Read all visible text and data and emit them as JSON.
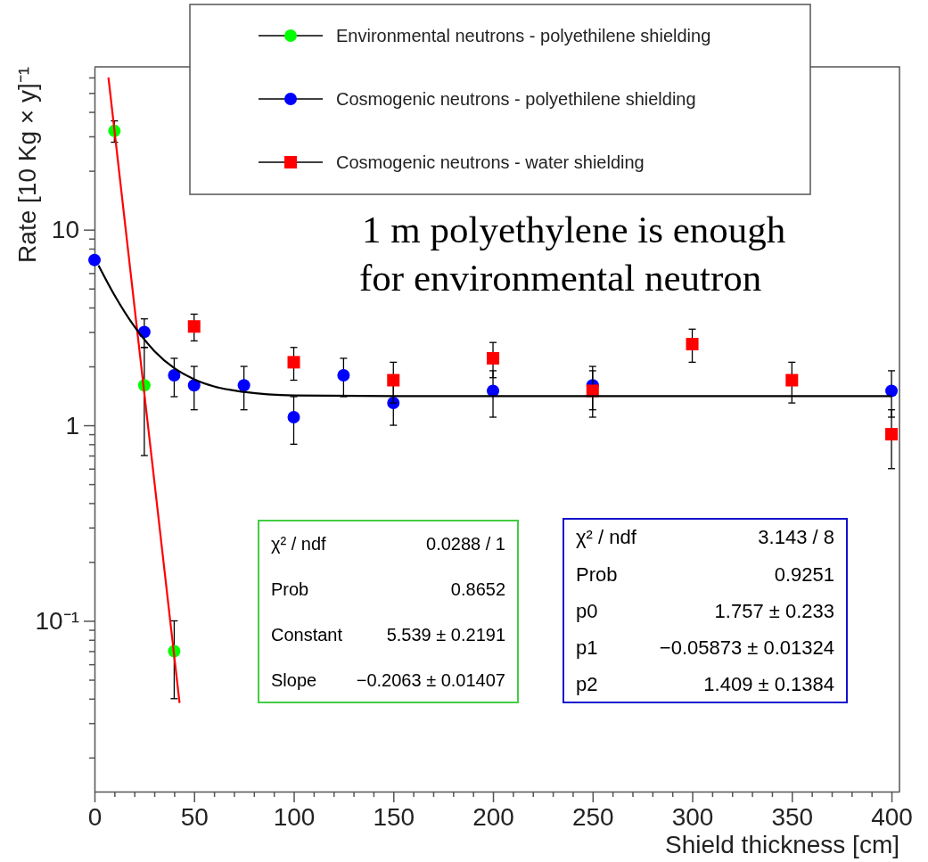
{
  "chart_data": {
    "type": "scatter",
    "xlabel": "Shield thickness [cm]",
    "ylabel": "Rate [10 Kg  × y]⁻¹",
    "log": "y",
    "grid": false,
    "legend": "top",
    "xlim": [
      0,
      404
    ],
    "ylim": [
      0.0134,
      68
    ],
    "xticks": [
      0,
      {
        "value": 10,
        "label": null
      },
      {
        "value": 20,
        "label": null
      },
      {
        "value": 30,
        "label": null
      },
      {
        "value": 40,
        "label": null
      },
      50,
      {
        "value": 60,
        "label": null
      },
      {
        "value": 70,
        "label": null
      },
      {
        "value": 80,
        "label": null
      },
      {
        "value": 90,
        "label": null
      },
      100,
      {
        "value": 110,
        "label": null
      },
      {
        "value": 120,
        "label": null
      },
      {
        "value": 130,
        "label": null
      },
      {
        "value": 140,
        "label": null
      },
      150,
      {
        "value": 160,
        "label": null
      },
      {
        "value": 170,
        "label": null
      },
      {
        "value": 180,
        "label": null
      },
      {
        "value": 190,
        "label": null
      },
      200,
      {
        "value": 210,
        "label": null
      },
      {
        "value": 220,
        "label": null
      },
      {
        "value": 230,
        "label": null
      },
      {
        "value": 240,
        "label": null
      },
      250,
      {
        "value": 260,
        "label": null
      },
      {
        "value": 270,
        "label": null
      },
      {
        "value": 280,
        "label": null
      },
      {
        "value": 290,
        "label": null
      },
      300,
      {
        "value": 310,
        "label": null
      },
      {
        "value": 320,
        "label": null
      },
      {
        "value": 330,
        "label": null
      },
      {
        "value": 340,
        "label": null
      },
      350,
      {
        "value": 360,
        "label": null
      },
      {
        "value": 370,
        "label": null
      },
      {
        "value": 380,
        "label": null
      },
      {
        "value": 390,
        "label": null
      },
      400
    ],
    "yticks": [
      {
        "value": 0.02,
        "label": null
      },
      {
        "value": 0.03,
        "label": null
      },
      {
        "value": 0.04,
        "label": null
      },
      {
        "value": 0.05,
        "label": null
      },
      {
        "value": 0.06,
        "label": null
      },
      {
        "value": 0.07,
        "label": null
      },
      {
        "value": 0.08,
        "label": null
      },
      {
        "value": 0.09,
        "label": null
      },
      {
        "value": 0.1,
        "label": "10⁻¹"
      },
      {
        "value": 0.2,
        "label": null
      },
      {
        "value": 0.3,
        "label": null
      },
      {
        "value": 0.4,
        "label": null
      },
      {
        "value": 0.5,
        "label": null
      },
      {
        "value": 0.6,
        "label": null
      },
      {
        "value": 0.7,
        "label": null
      },
      {
        "value": 0.8,
        "label": null
      },
      {
        "value": 0.9,
        "label": null
      },
      1,
      {
        "value": 2,
        "label": null
      },
      {
        "value": 3,
        "label": null
      },
      {
        "value": 4,
        "label": null
      },
      {
        "value": 5,
        "label": null
      },
      {
        "value": 6,
        "label": null
      },
      {
        "value": 7,
        "label": null
      },
      {
        "value": 8,
        "label": null
      },
      {
        "value": 9,
        "label": null
      },
      10,
      {
        "value": 20,
        "label": null
      },
      {
        "value": 30,
        "label": null
      },
      {
        "value": 40,
        "label": null
      },
      {
        "value": 50,
        "label": null
      },
      {
        "value": 60,
        "label": null
      }
    ],
    "series": [
      {
        "name": "Environmental neutrons - polyethilene shielding",
        "color": "#00ff00",
        "marker": "circle",
        "x": [
          10,
          25,
          40
        ],
        "values": [
          32,
          1.6,
          0.07
        ],
        "errors": [
          4,
          0.9,
          0.03
        ]
      },
      {
        "name": "Cosmogenic neutrons - polyethilene shielding",
        "color": "#0000ff",
        "marker": "circle",
        "x": [
          0,
          25,
          40,
          50,
          75,
          100,
          125,
          150,
          200,
          250,
          400
        ],
        "values": [
          7.0,
          3.0,
          1.8,
          1.6,
          1.6,
          1.1,
          1.8,
          1.3,
          1.5,
          1.6,
          1.5
        ],
        "errors": [
          null,
          0.5,
          0.4,
          0.4,
          0.4,
          0.3,
          0.4,
          0.3,
          0.4,
          0.4,
          0.4
        ]
      },
      {
        "name": "Cosmogenic neutrons - water shielding",
        "color": "#ff0000",
        "marker": "square",
        "x": [
          50,
          100,
          150,
          200,
          250,
          300,
          350,
          400
        ],
        "values": [
          3.2,
          2.1,
          1.7,
          2.2,
          1.5,
          2.6,
          1.7,
          0.9
        ],
        "errors": [
          0.5,
          0.4,
          0.4,
          0.45,
          0.4,
          0.5,
          0.4,
          0.3
        ]
      },
      {
        "type": "line",
        "color": "#ff0000",
        "marker": "none",
        "x": [
          7,
          25,
          42.7
        ],
        "values": [
          60,
          1.46,
          0.038
        ]
      },
      {
        "type": "line",
        "color": "#000000",
        "marker": "none",
        "x": [
          2,
          10,
          20,
          30,
          40,
          50,
          60,
          75,
          100,
          150,
          200,
          300,
          400
        ],
        "values": [
          6.57,
          4.63,
          3.2,
          2.4,
          1.96,
          1.72,
          1.58,
          1.48,
          1.42,
          1.41,
          1.41,
          1.41,
          1.41
        ]
      }
    ],
    "annotations": [
      "1 m polyethylene is enough for environmental neutron",
      "χ² / ndf",
      "0.0288 / 1",
      "Prob",
      "0.8652",
      "Constant",
      "5.539 ± 0.2191",
      "Slope",
      "−0.2063 ± 0.01407",
      "χ² / ndf",
      "3.143 / 8",
      "Prob",
      "0.9251",
      "p0",
      "1.757 ± 0.233",
      "p1",
      "−0.05873 ± 0.01324",
      "p2",
      "1.409 ± 0.1384"
    ]
  }
}
